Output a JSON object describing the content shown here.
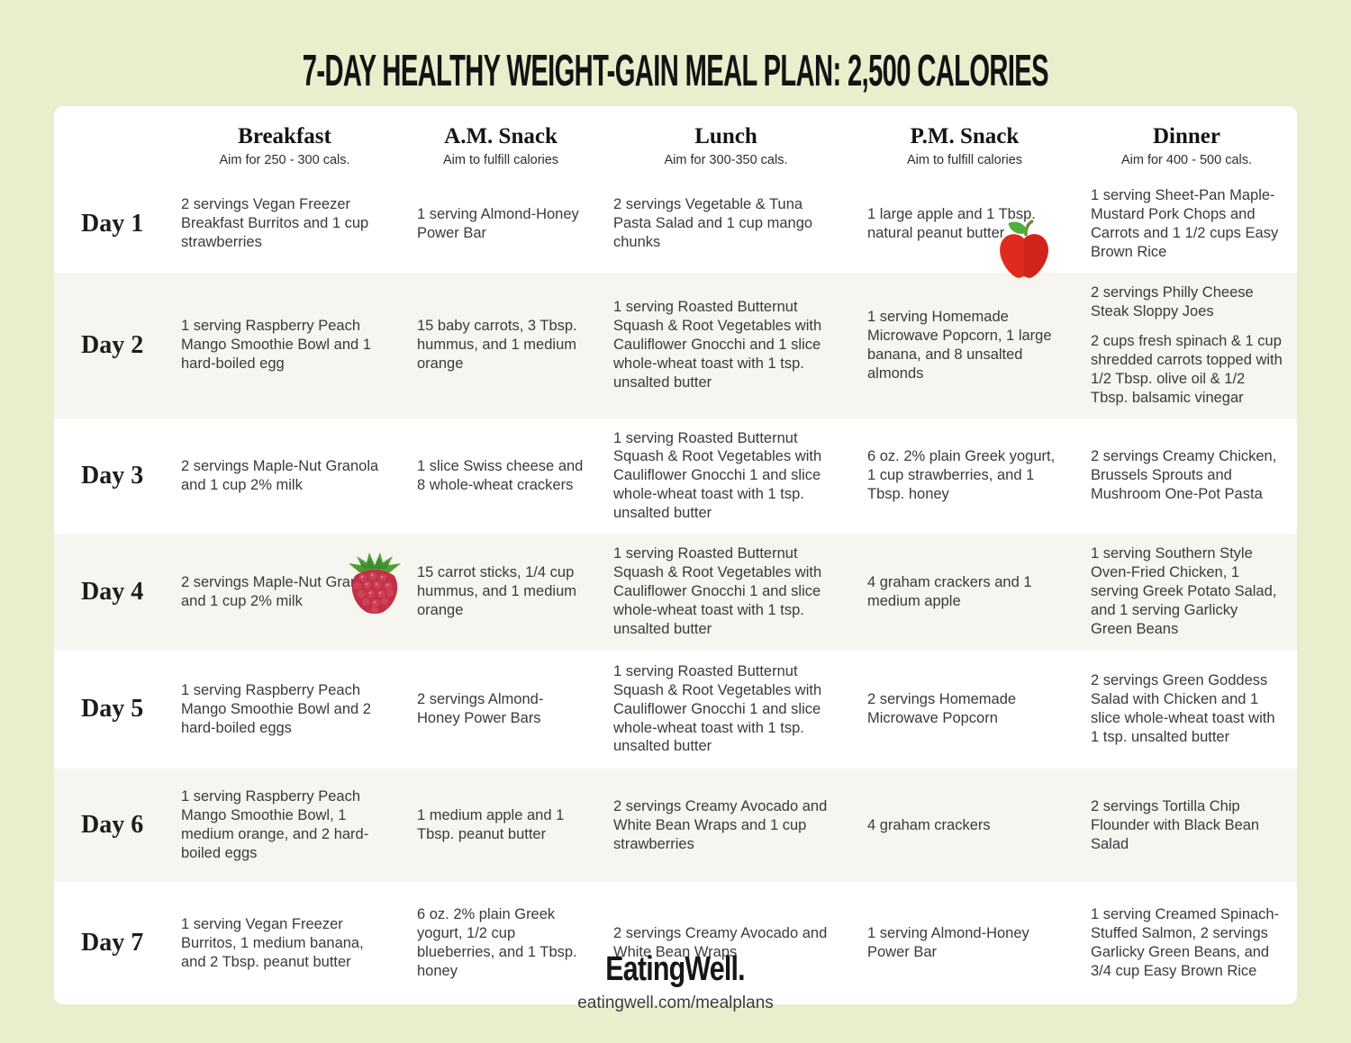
{
  "title": "7-DAY HEALTHY WEIGHT-GAIN MEAL PLAN: 2,500 CALORIES",
  "columns": [
    {
      "label": "Breakfast",
      "subtitle": "Aim for 250 - 300 cals."
    },
    {
      "label": "A.M. Snack",
      "subtitle": "Aim to fulfill calories"
    },
    {
      "label": "Lunch",
      "subtitle": "Aim for 300-350 cals."
    },
    {
      "label": "P.M. Snack",
      "subtitle": "Aim to fulfill calories"
    },
    {
      "label": "Dinner",
      "subtitle": "Aim for 400 - 500 cals."
    }
  ],
  "days": [
    {
      "label": "Day 1",
      "breakfast": [
        "2 servings Vegan Freezer Breakfast Burritos and 1 cup strawberries"
      ],
      "am_snack": [
        "1 serving Almond-Honey Power Bar"
      ],
      "lunch": [
        "2 servings Vegetable & Tuna Pasta Salad and 1 cup mango chunks"
      ],
      "pm_snack": [
        "1 large apple and 1 Tbsp. natural peanut butter"
      ],
      "dinner": [
        "1 serving Sheet-Pan Maple-Mustard Pork Chops and Carrots and 1 1/2 cups Easy Brown Rice"
      ]
    },
    {
      "label": "Day 2",
      "breakfast": [
        "1 serving Raspberry Peach Mango Smoothie Bowl and 1 hard-boiled egg"
      ],
      "am_snack": [
        "15 baby carrots, 3 Tbsp. hummus, and 1 medium orange"
      ],
      "lunch": [
        "1 serving Roasted Butternut Squash & Root Vegetables with Cauliflower Gnocchi and 1 slice whole-wheat toast with 1 tsp. unsalted butter"
      ],
      "pm_snack": [
        "1 serving Homemade Microwave Popcorn, 1 large banana, and 8 unsalted almonds"
      ],
      "dinner": [
        "2 servings Philly Cheese Steak Sloppy Joes",
        "2 cups fresh spinach & 1 cup shredded carrots topped with 1/2 Tbsp. olive oil & 1/2 Tbsp. balsamic vinegar"
      ]
    },
    {
      "label": "Day 3",
      "breakfast": [
        "2 servings Maple-Nut Granola and 1 cup 2% milk"
      ],
      "am_snack": [
        "1 slice Swiss cheese and 8 whole-wheat crackers"
      ],
      "lunch": [
        "1 serving Roasted Butternut Squash & Root Vegetables with Cauliflower Gnocchi 1 and slice whole-wheat toast with 1 tsp. unsalted butter"
      ],
      "pm_snack": [
        "6 oz. 2% plain Greek yogurt, 1 cup strawberries, and 1 Tbsp. honey"
      ],
      "dinner": [
        "2 servings Creamy Chicken, Brussels Sprouts and Mushroom One-Pot Pasta"
      ]
    },
    {
      "label": "Day 4",
      "breakfast": [
        "2 servings Maple-Nut Granola and 1 cup 2% milk"
      ],
      "am_snack": [
        "15 carrot sticks, 1/4 cup hummus, and 1 medium orange"
      ],
      "lunch": [
        "1 serving Roasted Butternut Squash & Root Vegetables with Cauliflower Gnocchi 1 and slice whole-wheat toast with 1 tsp. unsalted butter"
      ],
      "pm_snack": [
        "4 graham crackers and 1 medium apple"
      ],
      "dinner": [
        "1 serving Southern Style Oven-Fried Chicken, 1 serving Greek Potato Salad, and 1 serving Garlicky Green Beans"
      ]
    },
    {
      "label": "Day 5",
      "breakfast": [
        "1 serving Raspberry Peach Mango Smoothie Bowl and 2 hard-boiled eggs"
      ],
      "am_snack": [
        "2 servings Almond-Honey Power Bars"
      ],
      "lunch": [
        "1 serving Roasted Butternut Squash & Root Vegetables with Cauliflower Gnocchi 1 and slice whole-wheat toast with 1 tsp. unsalted butter"
      ],
      "pm_snack": [
        "2 servings Homemade Microwave Popcorn"
      ],
      "dinner": [
        "2 servings Green Goddess Salad with Chicken and 1 slice whole-wheat toast with 1 tsp. unsalted butter"
      ]
    },
    {
      "label": "Day 6",
      "breakfast": [
        "1 serving Raspberry Peach Mango Smoothie Bowl, 1 medium orange, and 2 hard-boiled eggs"
      ],
      "am_snack": [
        "1 medium apple and 1 Tbsp. peanut butter"
      ],
      "lunch": [
        "2 servings Creamy Avocado and White Bean Wraps and 1 cup strawberries"
      ],
      "pm_snack": [
        "4 graham crackers"
      ],
      "dinner": [
        "2 servings Tortilla Chip Flounder with Black Bean Salad"
      ]
    },
    {
      "label": "Day 7",
      "breakfast": [
        "1 serving Vegan Freezer Burritos, 1 medium banana, and 2 Tbsp. peanut butter"
      ],
      "am_snack": [
        "6 oz. 2% plain Greek yogurt, 1/2 cup blueberries, and 1 Tbsp. honey"
      ],
      "lunch": [
        "2 servings Creamy Avocado and White Bean Wraps"
      ],
      "pm_snack": [
        "1 serving Almond-Honey Power Bar"
      ],
      "dinner": [
        "1 serving Creamed Spinach-Stuffed Salmon, 2 servings Garlicky Green Beans, and 3/4 cup Easy Brown Rice"
      ]
    }
  ],
  "icons": {
    "apple": "apple-icon",
    "raspberry": "raspberry-icon"
  },
  "footer": {
    "logo": "EatingWell.",
    "url": "eatingwell.com/mealplans"
  },
  "colors": {
    "background": "#e9eecd",
    "card": "#ffffff",
    "row_stripe": "#f6f5ef",
    "title_text": "#131313",
    "body_text": "#3a3a3a",
    "apple_red": "#e12a1f",
    "apple_red_dark": "#d0241a",
    "leaf_green": "#4fae3d",
    "raspberry_red": "#c22f46",
    "raspberry_drupelet": "#cd4257"
  }
}
